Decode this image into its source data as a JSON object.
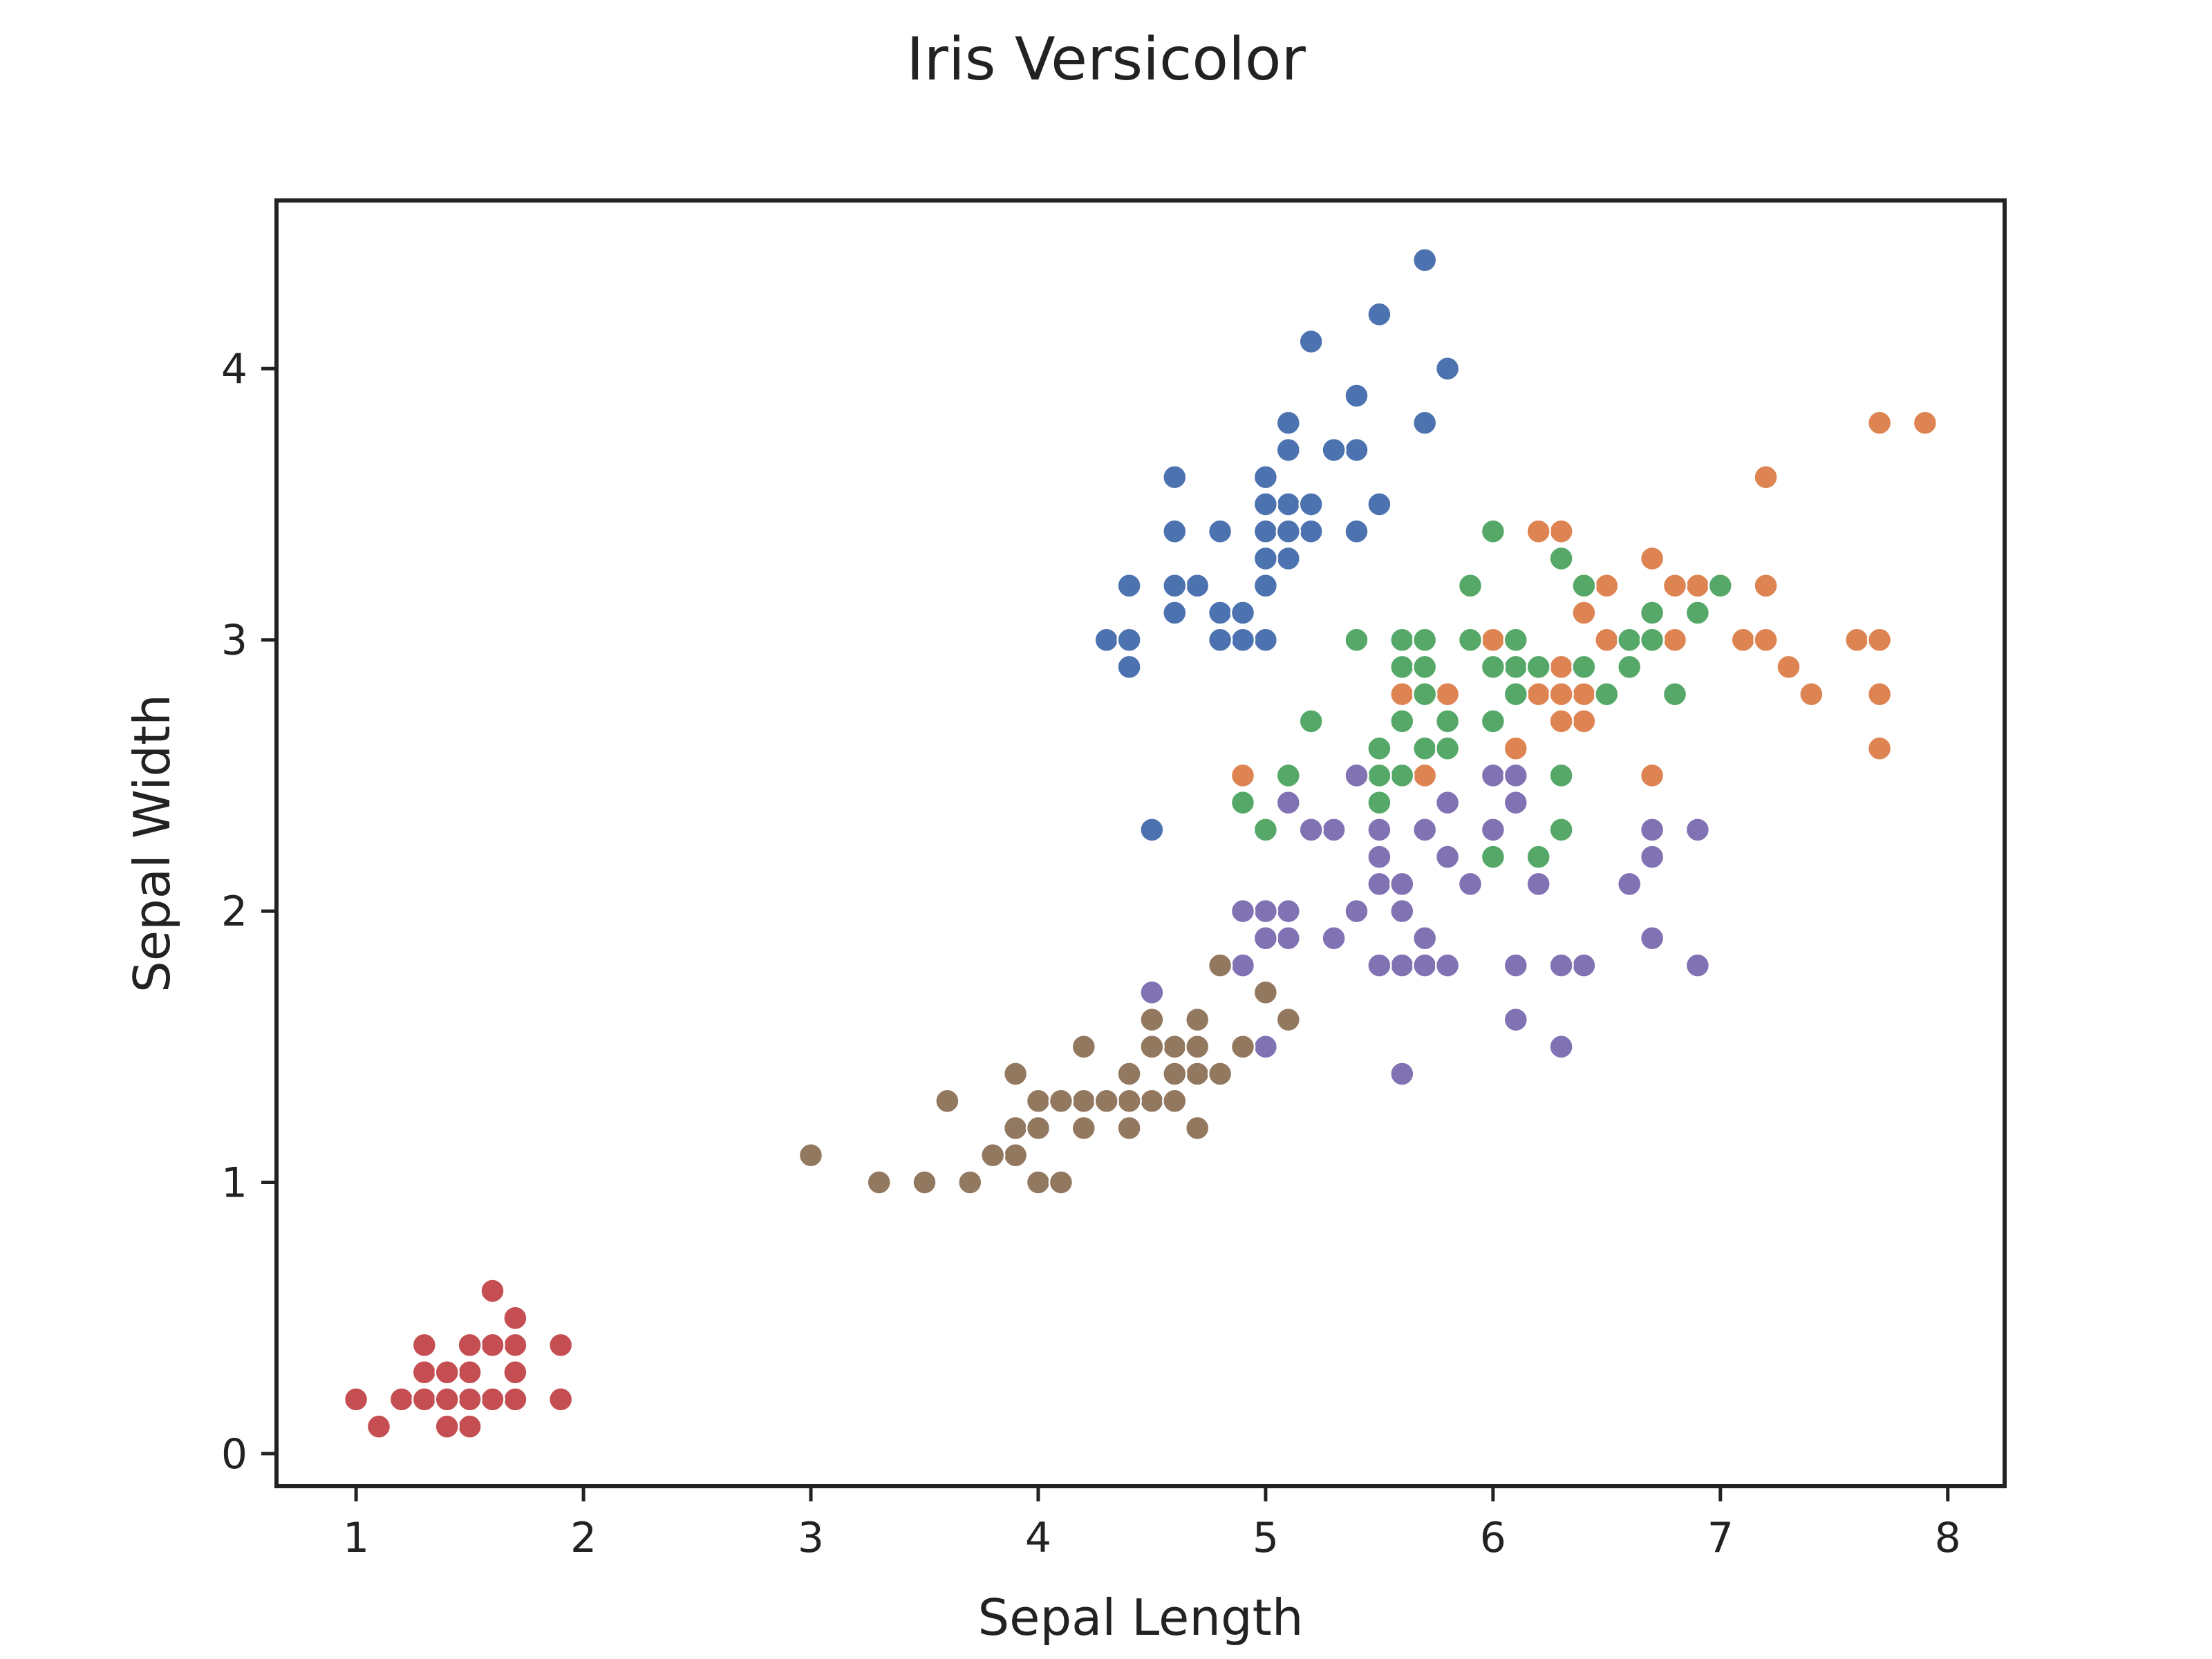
{
  "chart_data": {
    "type": "scatter",
    "title": "Iris Versicolor",
    "xlabel": "Sepal Length",
    "ylabel": "Sepal Width",
    "xlim": [
      0.65,
      8.25
    ],
    "ylim": [
      -0.12,
      4.62
    ],
    "xticks": [
      1,
      2,
      3,
      4,
      5,
      6,
      7,
      8
    ],
    "yticks": [
      0,
      1,
      2,
      3,
      4
    ],
    "grid": false,
    "legend": "none",
    "series": [
      {
        "color": "#4c72b0",
        "x": [
          5.1,
          4.9,
          4.7,
          4.6,
          5.0,
          5.4,
          4.6,
          5.0,
          4.4,
          4.9,
          5.4,
          4.8,
          4.8,
          4.3,
          5.8,
          5.7,
          5.4,
          5.1,
          5.7,
          5.1,
          5.4,
          5.1,
          4.6,
          5.1,
          4.8,
          5.0,
          5.0,
          5.2,
          5.2,
          4.7,
          4.8,
          5.4,
          5.2,
          5.5,
          4.9,
          5.0,
          5.5,
          4.9,
          4.4,
          5.1,
          5.0,
          4.5,
          4.4,
          5.0,
          5.1,
          4.8,
          5.1,
          4.6,
          5.3,
          5.0
        ],
        "y": [
          3.5,
          3.0,
          3.2,
          3.1,
          3.6,
          3.9,
          3.4,
          3.4,
          2.9,
          3.1,
          3.7,
          3.4,
          3.0,
          3.0,
          4.0,
          4.4,
          3.9,
          3.5,
          3.8,
          3.8,
          3.4,
          3.7,
          3.6,
          3.3,
          3.4,
          3.0,
          3.4,
          3.5,
          3.4,
          3.2,
          3.1,
          3.4,
          4.1,
          4.2,
          3.1,
          3.2,
          3.5,
          3.0,
          3.0,
          3.4,
          3.5,
          2.3,
          3.2,
          3.5,
          3.8,
          3.0,
          3.8,
          3.2,
          3.7,
          3.3
        ]
      },
      {
        "color": "#dd8452",
        "x": [
          6.3,
          5.8,
          7.1,
          6.3,
          6.5,
          7.6,
          4.9,
          7.3,
          6.7,
          7.2,
          6.5,
          6.4,
          6.8,
          5.7,
          5.8,
          6.4,
          6.5,
          7.7,
          7.7,
          6.0,
          6.9,
          5.6,
          7.7,
          6.3,
          6.7,
          7.2,
          6.2,
          6.1,
          6.4,
          7.2,
          7.4,
          7.9,
          6.4,
          6.3,
          6.1,
          7.7,
          6.3,
          6.4,
          6.0,
          6.9,
          6.7,
          6.9,
          5.8,
          6.8,
          6.7,
          6.7,
          6.3,
          6.5,
          6.2,
          5.9
        ],
        "y": [
          3.3,
          2.7,
          3.0,
          2.9,
          3.0,
          3.0,
          2.5,
          2.9,
          2.5,
          3.6,
          3.2,
          2.7,
          3.0,
          2.5,
          2.8,
          3.2,
          3.0,
          3.8,
          2.6,
          2.2,
          3.2,
          2.8,
          2.8,
          2.7,
          3.3,
          3.2,
          2.8,
          3.0,
          2.8,
          3.0,
          2.8,
          3.8,
          2.8,
          2.8,
          2.6,
          3.0,
          3.4,
          3.1,
          3.0,
          3.1,
          3.1,
          3.1,
          2.7,
          3.2,
          3.3,
          3.0,
          2.5,
          3.0,
          3.4,
          3.0
        ]
      },
      {
        "color": "#55a868",
        "x": [
          7.0,
          6.4,
          6.9,
          5.5,
          6.5,
          5.7,
          6.3,
          4.9,
          6.6,
          5.2,
          5.0,
          5.9,
          6.0,
          6.1,
          5.6,
          6.7,
          5.6,
          5.8,
          6.2,
          5.6,
          5.9,
          6.1,
          6.3,
          6.1,
          6.4,
          6.6,
          6.8,
          6.7,
          6.0,
          5.7,
          5.5,
          5.5,
          5.8,
          6.0,
          5.4,
          6.0,
          6.7,
          6.3,
          5.6,
          5.5,
          5.5,
          6.1,
          5.8,
          5.0,
          5.6,
          5.7,
          5.7,
          6.2,
          5.1,
          5.7
        ],
        "y": [
          3.2,
          3.2,
          3.1,
          2.3,
          2.8,
          2.8,
          3.3,
          2.4,
          2.9,
          2.7,
          2.0,
          3.0,
          2.2,
          2.9,
          2.9,
          3.1,
          3.0,
          2.7,
          2.2,
          2.5,
          3.2,
          2.8,
          2.5,
          2.8,
          2.9,
          3.0,
          2.8,
          3.0,
          2.9,
          2.6,
          2.4,
          2.4,
          2.7,
          2.7,
          3.0,
          3.4,
          3.1,
          2.3,
          3.0,
          2.5,
          2.6,
          3.0,
          2.6,
          2.3,
          2.7,
          3.0,
          2.9,
          2.9,
          2.5,
          2.8
        ]
      },
      {
        "color": "#c44e52",
        "x": [
          1.4,
          1.4,
          1.3,
          1.5,
          1.4,
          1.7,
          1.4,
          1.5,
          1.4,
          1.5,
          1.5,
          1.6,
          1.4,
          1.1,
          1.2,
          1.5,
          1.3,
          1.4,
          1.7,
          1.5,
          1.7,
          1.5,
          1.0,
          1.7,
          1.9,
          1.6,
          1.6,
          1.5,
          1.4,
          1.6,
          1.6,
          1.5,
          1.5,
          1.4,
          1.5,
          1.2,
          1.3,
          1.4,
          1.3,
          1.5,
          1.3,
          1.3,
          1.3,
          1.6,
          1.9,
          1.4,
          1.6,
          1.4,
          1.5,
          1.4
        ],
        "y": [
          0.2,
          0.2,
          0.2,
          0.2,
          0.2,
          0.4,
          0.3,
          0.2,
          0.2,
          0.1,
          0.2,
          0.2,
          0.1,
          0.1,
          0.2,
          0.4,
          0.4,
          0.3,
          0.3,
          0.3,
          0.2,
          0.4,
          0.2,
          0.5,
          0.2,
          0.2,
          0.4,
          0.2,
          0.2,
          0.2,
          0.2,
          0.4,
          0.1,
          0.2,
          0.2,
          0.2,
          0.2,
          0.1,
          0.2,
          0.2,
          0.3,
          0.3,
          0.2,
          0.6,
          0.4,
          0.3,
          0.2,
          0.2,
          0.2,
          0.2
        ]
      },
      {
        "color": "#8172b3",
        "x": [
          6.0,
          5.1,
          5.9,
          5.6,
          5.8,
          6.6,
          4.5,
          6.3,
          5.8,
          6.1,
          5.1,
          5.3,
          5.5,
          5.0,
          5.1,
          5.3,
          5.5,
          6.7,
          6.9,
          5.0,
          5.7,
          4.9,
          5.6,
          5.7,
          6.2,
          6.1,
          5.8,
          6.4,
          5.6,
          6.1,
          6.7,
          5.6,
          5.5,
          6.3,
          5.6,
          6.0,
          6.1,
          6.3,
          6.9,
          5.9,
          5.8,
          6.7,
          5.7,
          5.5,
          5.4,
          5.2,
          5.0,
          4.9,
          6.0,
          5.4
        ],
        "y": [
          2.5,
          1.9,
          2.1,
          1.8,
          2.2,
          2.1,
          1.7,
          1.8,
          1.8,
          2.5,
          2.0,
          1.9,
          2.1,
          2.0,
          2.4,
          2.3,
          1.8,
          2.2,
          2.3,
          1.5,
          2.3,
          2.0,
          2.0,
          1.8,
          2.1,
          1.8,
          1.8,
          1.8,
          2.1,
          1.6,
          1.9,
          2.0,
          2.2,
          1.5,
          1.4,
          2.3,
          2.4,
          1.8,
          1.8,
          2.1,
          2.4,
          2.3,
          1.9,
          2.3,
          2.5,
          2.3,
          1.9,
          1.8,
          2.3,
          2.0
        ]
      },
      {
        "color": "#937860",
        "x": [
          4.7,
          4.5,
          4.9,
          4.0,
          4.6,
          4.5,
          4.7,
          3.3,
          4.6,
          3.9,
          3.5,
          4.2,
          4.0,
          4.7,
          3.6,
          4.4,
          4.5,
          4.1,
          4.5,
          3.9,
          4.8,
          4.0,
          4.9,
          4.7,
          4.3,
          4.4,
          4.8,
          5.0,
          4.5,
          3.5,
          3.8,
          3.7,
          3.9,
          5.1,
          4.5,
          4.5,
          4.7,
          4.4,
          4.1,
          4.0,
          4.4,
          4.6,
          4.0,
          3.3,
          4.2,
          4.2,
          4.2,
          4.3,
          3.0,
          4.1
        ],
        "y": [
          1.4,
          1.5,
          1.5,
          1.3,
          1.5,
          1.3,
          1.6,
          1.0,
          1.3,
          1.4,
          1.0,
          1.5,
          1.0,
          1.4,
          1.3,
          1.4,
          1.5,
          1.0,
          1.5,
          1.1,
          1.8,
          1.3,
          1.5,
          1.2,
          1.3,
          1.4,
          1.4,
          1.7,
          1.5,
          1.0,
          1.1,
          1.0,
          1.2,
          1.6,
          1.5,
          1.6,
          1.5,
          1.3,
          1.3,
          1.3,
          1.2,
          1.4,
          1.2,
          1.0,
          1.3,
          1.2,
          1.3,
          1.3,
          1.1,
          1.3
        ]
      }
    ]
  }
}
